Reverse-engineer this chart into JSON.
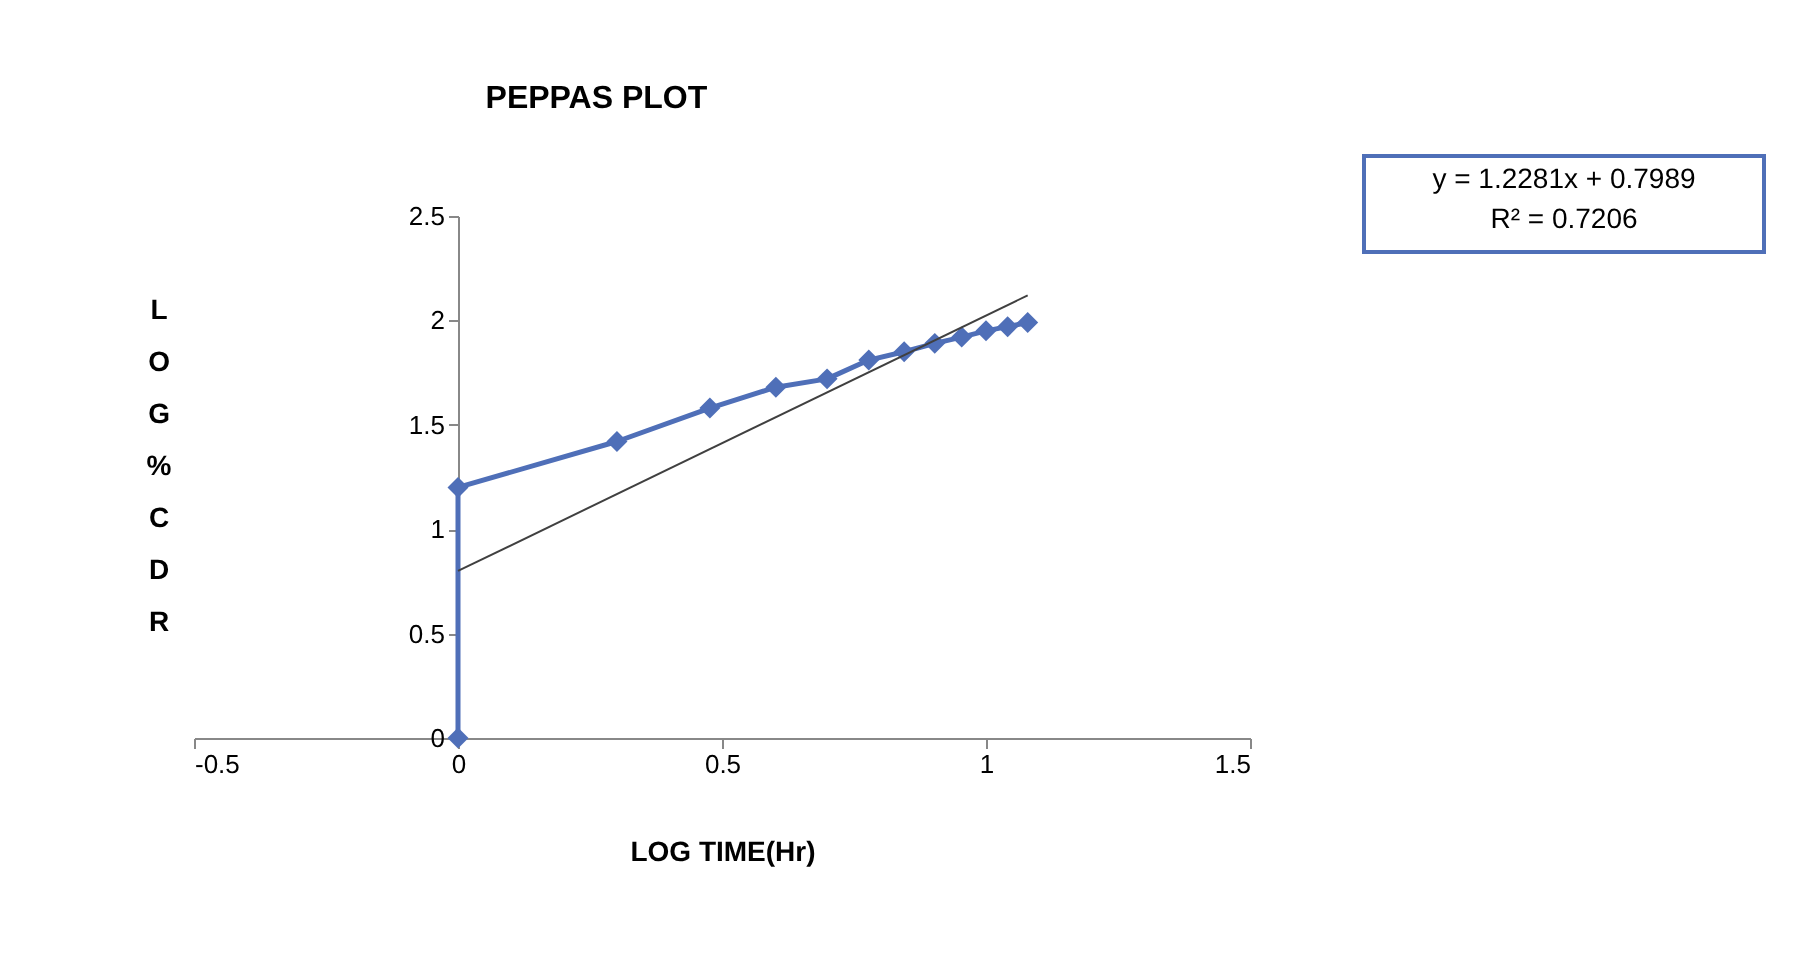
{
  "chart_data": {
    "type": "line",
    "title": "PEPPAS PLOT",
    "xlabel": "LOG TIME(Hr)",
    "ylabel": "LOG%CDR",
    "xlim": [
      -0.5,
      1.5
    ],
    "xticks": [
      -0.5,
      0,
      0.5,
      1,
      1.5
    ],
    "ylim": [
      0,
      2.5
    ],
    "yticks": [
      0,
      0.5,
      1,
      1.5,
      2,
      2.5
    ],
    "grid": false,
    "series": [
      {
        "color": "#4f6fb8",
        "marker": "diamond",
        "x": [
          0,
          0,
          0.301,
          0.477,
          0.602,
          0.699,
          0.778,
          0.845,
          0.903,
          0.954,
          1.0,
          1.041,
          1.079
        ],
        "values": [
          0,
          1.2,
          1.42,
          1.58,
          1.68,
          1.72,
          1.81,
          1.85,
          1.89,
          1.92,
          1.95,
          1.97,
          1.99
        ]
      },
      {
        "type": "line",
        "color": "#404040",
        "marker": "none",
        "x": [
          0,
          1.079
        ],
        "values": [
          0.8,
          2.12
        ]
      }
    ],
    "annotations": [
      "y = 1.2281x + 0.7989",
      "R² = 0.7206"
    ]
  }
}
